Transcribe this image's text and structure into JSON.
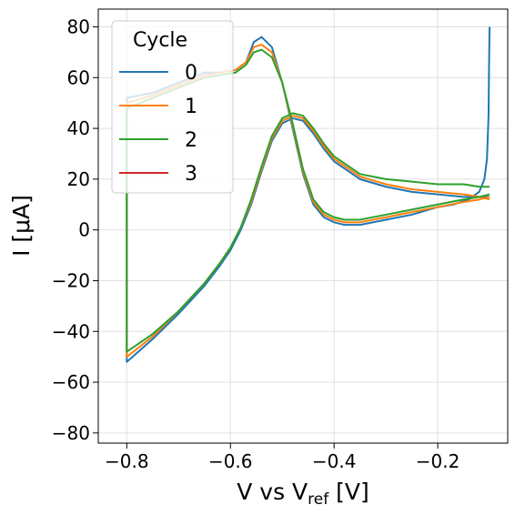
{
  "chart_data": {
    "type": "line",
    "title": "",
    "xlabel": "V vs V",
    "xlabel_sub": "ref",
    "xlabel_unit": " [V]",
    "ylabel": "I [μA]",
    "xlim": [
      -0.855,
      -0.065
    ],
    "ylim": [
      -84,
      87
    ],
    "xticks": [
      -0.8,
      -0.6,
      -0.4,
      -0.2
    ],
    "xtick_labels": [
      "−0.8",
      "−0.6",
      "−0.4",
      "−0.2"
    ],
    "yticks": [
      -80,
      -60,
      -40,
      -20,
      0,
      20,
      40,
      60,
      80
    ],
    "ytick_labels": [
      "−80",
      "−60",
      "−40",
      "−20",
      "0",
      "20",
      "40",
      "60",
      "80"
    ],
    "grid": true,
    "legend": {
      "title": "Cycle",
      "placement": "top-left"
    },
    "series": [
      {
        "name": "0",
        "color": "#1f77b4",
        "x": [
          -0.1,
          -0.101,
          -0.102,
          -0.105,
          -0.11,
          -0.12,
          -0.14,
          -0.17,
          -0.2,
          -0.25,
          -0.3,
          -0.35,
          -0.38,
          -0.4,
          -0.42,
          -0.44,
          -0.46,
          -0.48,
          -0.5,
          -0.52,
          -0.54,
          -0.555,
          -0.57,
          -0.59,
          -0.62,
          -0.65,
          -0.7,
          -0.75,
          -0.8,
          -0.8,
          -0.75,
          -0.7,
          -0.65,
          -0.62,
          -0.6,
          -0.58,
          -0.56,
          -0.54,
          -0.52,
          -0.5,
          -0.48,
          -0.46,
          -0.44,
          -0.42,
          -0.4,
          -0.35,
          -0.3,
          -0.25,
          -0.2,
          -0.15,
          -0.12,
          -0.1
        ],
        "y": [
          80,
          65,
          45,
          28,
          20,
          15,
          12,
          10,
          9,
          6,
          4,
          2,
          2,
          3,
          5,
          10,
          22,
          40,
          58,
          72,
          76,
          74,
          66,
          63,
          62,
          62,
          58,
          54,
          52,
          -52,
          -43,
          -33,
          -22,
          -14,
          -8,
          0,
          10,
          23,
          35,
          42,
          44,
          43,
          38,
          32,
          27,
          20,
          17,
          15,
          14,
          13,
          13,
          13
        ]
      },
      {
        "name": "1",
        "color": "#ff7f0e",
        "x": [
          -0.1,
          -0.12,
          -0.15,
          -0.2,
          -0.25,
          -0.3,
          -0.35,
          -0.38,
          -0.4,
          -0.42,
          -0.44,
          -0.46,
          -0.48,
          -0.5,
          -0.52,
          -0.54,
          -0.555,
          -0.57,
          -0.59,
          -0.62,
          -0.65,
          -0.7,
          -0.75,
          -0.8,
          -0.8,
          -0.75,
          -0.7,
          -0.65,
          -0.62,
          -0.6,
          -0.58,
          -0.56,
          -0.54,
          -0.52,
          -0.5,
          -0.48,
          -0.46,
          -0.44,
          -0.42,
          -0.4,
          -0.35,
          -0.3,
          -0.25,
          -0.2,
          -0.15,
          -0.12,
          -0.1
        ],
        "y": [
          13,
          12,
          11,
          9,
          7,
          5,
          3,
          3,
          4,
          6,
          11,
          23,
          41,
          58,
          70,
          73,
          72,
          66,
          63,
          62,
          61,
          57,
          53,
          50,
          -50,
          -42,
          -32,
          -21,
          -13,
          -7,
          1,
          11,
          24,
          36,
          43,
          45,
          44,
          39,
          33,
          28,
          21,
          18,
          16,
          15,
          14,
          13,
          12
        ]
      },
      {
        "name": "2",
        "color": "#2ca02c",
        "x": [
          -0.1,
          -0.12,
          -0.15,
          -0.2,
          -0.25,
          -0.3,
          -0.35,
          -0.38,
          -0.4,
          -0.42,
          -0.44,
          -0.46,
          -0.48,
          -0.5,
          -0.52,
          -0.54,
          -0.555,
          -0.57,
          -0.59,
          -0.62,
          -0.65,
          -0.7,
          -0.75,
          -0.8,
          -0.8,
          -0.75,
          -0.7,
          -0.65,
          -0.62,
          -0.6,
          -0.58,
          -0.56,
          -0.54,
          -0.52,
          -0.5,
          -0.48,
          -0.46,
          -0.44,
          -0.42,
          -0.4,
          -0.35,
          -0.3,
          -0.25,
          -0.2,
          -0.15,
          -0.12,
          -0.1
        ],
        "y": [
          14,
          13,
          12,
          10,
          8,
          6,
          4,
          4,
          5,
          7,
          12,
          24,
          42,
          58,
          68,
          71,
          70,
          65,
          62,
          61,
          60,
          56,
          52,
          48,
          -48,
          -41,
          -32,
          -21,
          -13,
          -7,
          1,
          12,
          25,
          37,
          44,
          46,
          45,
          40,
          34,
          29,
          22,
          20,
          19,
          18,
          18,
          17,
          17
        ]
      },
      {
        "name": "3",
        "color": "#d62728",
        "x": [],
        "y": []
      }
    ]
  }
}
